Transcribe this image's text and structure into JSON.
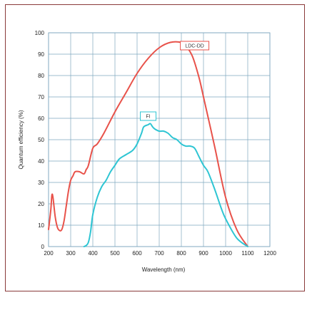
{
  "chart_data": {
    "type": "line",
    "xlabel": "Wavelength (nm)",
    "ylabel": "Quantum efficiency (%)",
    "xlim": [
      200,
      1200
    ],
    "ylim": [
      0,
      100
    ],
    "x_ticks": [
      200,
      300,
      400,
      500,
      600,
      700,
      800,
      900,
      1000,
      1100,
      1200
    ],
    "y_ticks": [
      0,
      10,
      20,
      30,
      40,
      50,
      60,
      70,
      80,
      90,
      100
    ],
    "grid": true,
    "series": [
      {
        "name": "LDC-DD",
        "color": "#e8524a",
        "x": [
          200,
          210,
          215,
          220,
          230,
          240,
          250,
          260,
          270,
          280,
          290,
          300,
          310,
          320,
          340,
          360,
          370,
          380,
          400,
          420,
          450,
          500,
          550,
          600,
          650,
          700,
          750,
          800,
          820,
          850,
          880,
          900,
          950,
          1000,
          1050,
          1100
        ],
        "y": [
          8,
          17,
          24,
          23,
          14,
          9,
          7.5,
          8,
          12,
          19,
          26,
          31,
          33,
          35,
          35,
          34,
          36,
          38,
          46,
          48,
          53,
          63,
          72,
          81,
          88,
          93,
          95.5,
          95.5,
          94,
          89,
          79,
          70,
          47,
          23,
          8,
          0
        ]
      },
      {
        "name": "FI",
        "color": "#2ec5d3",
        "x": [
          360,
          370,
          380,
          390,
          400,
          420,
          440,
          460,
          480,
          500,
          520,
          550,
          580,
          600,
          620,
          630,
          650,
          660,
          670,
          680,
          700,
          720,
          740,
          760,
          780,
          800,
          820,
          840,
          860,
          880,
          900,
          920,
          950,
          980,
          1000,
          1050,
          1100
        ],
        "y": [
          0,
          0.5,
          2,
          7,
          15,
          23,
          28,
          31,
          35,
          38,
          41,
          43,
          45,
          48,
          53,
          56,
          57,
          57.5,
          56,
          55,
          54,
          54,
          53,
          51,
          50,
          48,
          47,
          47,
          46,
          42,
          38,
          35,
          27,
          18,
          13,
          4,
          0
        ]
      }
    ],
    "legend_labels": [
      {
        "text": "LDC-DD",
        "x": 860,
        "y": 94,
        "color": "#e8524a"
      },
      {
        "text": "FI",
        "x": 650,
        "y": 61,
        "color": "#2ec5d3"
      }
    ]
  }
}
